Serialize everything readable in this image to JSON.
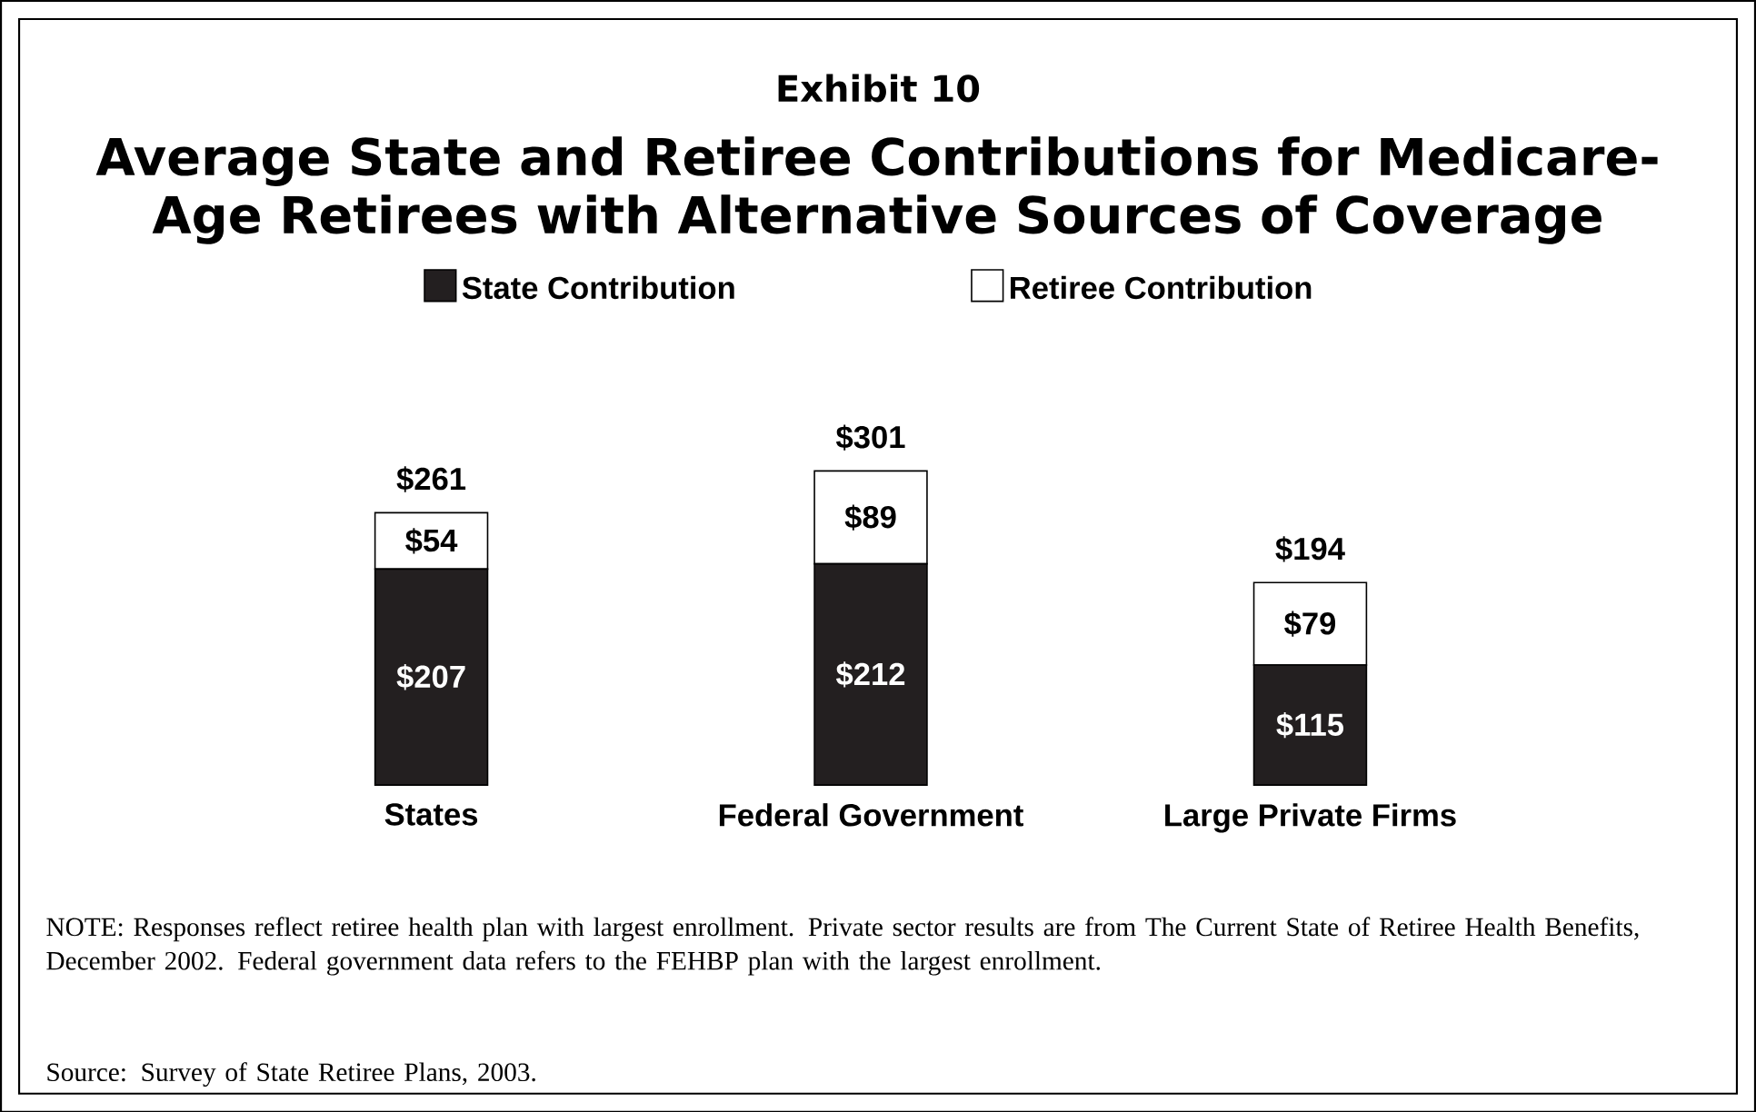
{
  "chart_data": {
    "type": "bar",
    "stacked": true,
    "title": "Exhibit 10",
    "subtitle": "Average State and Retiree Contributions for Medicare-Age Retirees with Alternative Sources of Coverage",
    "categories": [
      "States",
      "Federal Government",
      "Large Private Firms"
    ],
    "series": [
      {
        "name": "State Contribution",
        "color": "#231f20",
        "values": [
          207,
          212,
          115
        ],
        "value_labels": [
          "$207",
          "$212",
          "$115"
        ]
      },
      {
        "name": "Retiree Contribution",
        "color": "#ffffff",
        "values": [
          54,
          89,
          79
        ],
        "value_labels": [
          "$54",
          "$89",
          "$79"
        ]
      }
    ],
    "totals": [
      "$261",
      "$301",
      "$194"
    ],
    "legend": "top",
    "annotations": [
      "NOTE: Responses reflect retiree health plan with largest enrollment.  Private sector results are from The Current State of Retiree Health Benefits, December 2002.  Federal government data refers to the FEHBP plan with the largest enrollment.",
      "Source: Survey of State Retiree Plans, 2003."
    ]
  }
}
